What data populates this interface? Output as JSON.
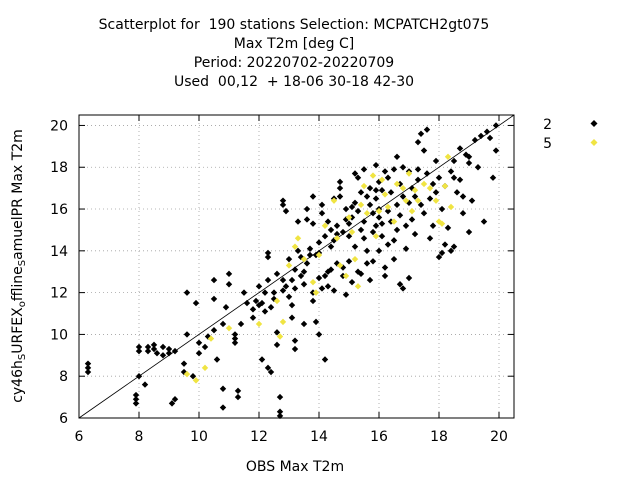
{
  "title_lines": [
    "Scatterplot for  190 stations Selection: MCPATCH2gt075",
    "Max T2m [deg C]",
    "Period: 20220702-20220709",
    "Used  00,12  + 18-06 30-18 42-30"
  ],
  "colors": {
    "series_2": "#000000",
    "series_5": "#f0e442",
    "grid": "#a0a0a0"
  },
  "chart_data": {
    "type": "scatter",
    "xlabel": "OBS Max T2m",
    "ylabel_parts": [
      "cy46h",
      "S",
      "URFEX",
      "o",
      "ffline",
      "S",
      "amuelPR Max T2m"
    ],
    "xlim": [
      6,
      20.5
    ],
    "ylim": [
      6,
      20.5
    ],
    "xticks": [
      6,
      8,
      10,
      12,
      14,
      16,
      18,
      20
    ],
    "yticks": [
      6,
      8,
      10,
      12,
      14,
      16,
      18,
      20
    ],
    "grid": true,
    "legend_position": "outside-top-right",
    "diagonal": true,
    "series": [
      {
        "name": "2",
        "color": "#000000",
        "points": [
          [
            6.3,
            8.6
          ],
          [
            6.3,
            8.2
          ],
          [
            6.3,
            8.4
          ],
          [
            7.9,
            6.9
          ],
          [
            7.9,
            6.7
          ],
          [
            7.9,
            7.1
          ],
          [
            8.0,
            9.4
          ],
          [
            8.0,
            9.2
          ],
          [
            8.0,
            8.0
          ],
          [
            8.2,
            7.6
          ],
          [
            8.3,
            9.4
          ],
          [
            8.3,
            9.2
          ],
          [
            8.5,
            9.3
          ],
          [
            8.5,
            9.5
          ],
          [
            8.6,
            9.1
          ],
          [
            8.8,
            9.0
          ],
          [
            8.8,
            9.4
          ],
          [
            9.0,
            9.3
          ],
          [
            9.0,
            9.1
          ],
          [
            9.1,
            6.7
          ],
          [
            9.2,
            6.9
          ],
          [
            9.2,
            9.2
          ],
          [
            9.5,
            8.2
          ],
          [
            9.5,
            8.6
          ],
          [
            9.6,
            12.0
          ],
          [
            9.6,
            10.0
          ],
          [
            9.8,
            8.0
          ],
          [
            9.9,
            11.5
          ],
          [
            10.0,
            9.1
          ],
          [
            10.0,
            9.6
          ],
          [
            10.2,
            9.4
          ],
          [
            10.3,
            9.9
          ],
          [
            10.5,
            10.2
          ],
          [
            10.5,
            11.7
          ],
          [
            10.5,
            12.6
          ],
          [
            10.6,
            8.8
          ],
          [
            10.8,
            10.5
          ],
          [
            10.8,
            7.4
          ],
          [
            10.8,
            6.5
          ],
          [
            10.9,
            11.3
          ],
          [
            11.0,
            12.4
          ],
          [
            11.0,
            12.9
          ],
          [
            11.2,
            9.6
          ],
          [
            11.2,
            10.0
          ],
          [
            11.2,
            9.8
          ],
          [
            11.3,
            7.3
          ],
          [
            11.3,
            7.0
          ],
          [
            11.4,
            10.5
          ],
          [
            11.5,
            12.0
          ],
          [
            11.6,
            11.5
          ],
          [
            11.8,
            11.2
          ],
          [
            11.8,
            10.8
          ],
          [
            11.9,
            11.6
          ],
          [
            12.0,
            11.4
          ],
          [
            12.0,
            12.3
          ],
          [
            12.1,
            8.8
          ],
          [
            12.1,
            11.5
          ],
          [
            12.2,
            11.1
          ],
          [
            12.2,
            12.0
          ],
          [
            12.3,
            12.6
          ],
          [
            12.3,
            13.7
          ],
          [
            12.3,
            13.9
          ],
          [
            12.3,
            8.4
          ],
          [
            12.4,
            8.2
          ],
          [
            12.4,
            11.3
          ],
          [
            12.5,
            12.0
          ],
          [
            12.5,
            11.7
          ],
          [
            12.6,
            10.1
          ],
          [
            12.6,
            9.5
          ],
          [
            12.6,
            12.9
          ],
          [
            12.7,
            6.1
          ],
          [
            12.7,
            6.3
          ],
          [
            12.7,
            7.0
          ],
          [
            12.8,
            12.1
          ],
          [
            12.8,
            12.6
          ],
          [
            12.8,
            16.4
          ],
          [
            12.8,
            16.2
          ],
          [
            12.9,
            15.9
          ],
          [
            12.9,
            12.3
          ],
          [
            13.0,
            13.6
          ],
          [
            13.0,
            11.8
          ],
          [
            13.1,
            10.8
          ],
          [
            13.1,
            11.4
          ],
          [
            13.1,
            12.6
          ],
          [
            13.2,
            12.2
          ],
          [
            13.2,
            13.1
          ],
          [
            13.2,
            9.3
          ],
          [
            13.2,
            9.7
          ],
          [
            13.3,
            15.4
          ],
          [
            13.3,
            14.0
          ],
          [
            13.4,
            13.7
          ],
          [
            13.4,
            12.8
          ],
          [
            13.5,
            13.0
          ],
          [
            13.5,
            12.4
          ],
          [
            13.5,
            10.5
          ],
          [
            13.6,
            13.4
          ],
          [
            13.6,
            16.0
          ],
          [
            13.6,
            15.5
          ],
          [
            13.7,
            14.1
          ],
          [
            13.7,
            13.8
          ],
          [
            13.8,
            11.6
          ],
          [
            13.8,
            12.0
          ],
          [
            13.8,
            15.3
          ],
          [
            13.9,
            10.6
          ],
          [
            13.9,
            13.8
          ],
          [
            14.0,
            14.4
          ],
          [
            14.0,
            13.9
          ],
          [
            14.0,
            12.7
          ],
          [
            14.0,
            10.0
          ],
          [
            14.1,
            12.2
          ],
          [
            14.1,
            16.2
          ],
          [
            14.1,
            15.8
          ],
          [
            14.2,
            14.7
          ],
          [
            14.2,
            12.8
          ],
          [
            14.2,
            8.8
          ],
          [
            14.3,
            12.3
          ],
          [
            14.3,
            13.0
          ],
          [
            14.4,
            15.0
          ],
          [
            14.4,
            13.1
          ],
          [
            14.4,
            14.2
          ],
          [
            14.5,
            16.5
          ],
          [
            14.5,
            14.5
          ],
          [
            14.5,
            12.1
          ],
          [
            14.6,
            14.8
          ],
          [
            14.6,
            15.2
          ],
          [
            14.6,
            13.4
          ],
          [
            14.7,
            17.3
          ],
          [
            14.7,
            17.0
          ],
          [
            14.7,
            16.6
          ],
          [
            14.8,
            14.9
          ],
          [
            14.8,
            13.2
          ],
          [
            14.8,
            12.8
          ],
          [
            14.9,
            15.5
          ],
          [
            14.9,
            16.0
          ],
          [
            14.9,
            11.9
          ],
          [
            15.0,
            14.7
          ],
          [
            15.0,
            15.3
          ],
          [
            15.0,
            13.5
          ],
          [
            15.1,
            12.5
          ],
          [
            15.1,
            15.6
          ],
          [
            15.1,
            16.1
          ],
          [
            15.2,
            14.2
          ],
          [
            15.2,
            16.3
          ],
          [
            15.2,
            17.7
          ],
          [
            15.3,
            17.5
          ],
          [
            15.3,
            15.9
          ],
          [
            15.3,
            13.0
          ],
          [
            15.4,
            15.0
          ],
          [
            15.4,
            12.9
          ],
          [
            15.4,
            16.8
          ],
          [
            15.5,
            14.6
          ],
          [
            15.5,
            17.9
          ],
          [
            15.5,
            15.4
          ],
          [
            15.6,
            16.6
          ],
          [
            15.6,
            13.4
          ],
          [
            15.6,
            14.0
          ],
          [
            15.7,
            16.2
          ],
          [
            15.7,
            17.0
          ],
          [
            15.7,
            12.6
          ],
          [
            15.8,
            15.8
          ],
          [
            15.8,
            14.9
          ],
          [
            15.8,
            13.5
          ],
          [
            15.9,
            16.5
          ],
          [
            15.9,
            15.2
          ],
          [
            15.9,
            18.1
          ],
          [
            16.0,
            17.3
          ],
          [
            16.0,
            14.0
          ],
          [
            16.0,
            16.0
          ],
          [
            16.0,
            15.6
          ],
          [
            16.1,
            15.3
          ],
          [
            16.1,
            14.7
          ],
          [
            16.1,
            16.9
          ],
          [
            16.2,
            12.8
          ],
          [
            16.2,
            13.2
          ],
          [
            16.3,
            17.5
          ],
          [
            16.3,
            15.9
          ],
          [
            16.3,
            14.3
          ],
          [
            16.4,
            16.8
          ],
          [
            16.4,
            15.4
          ],
          [
            16.5,
            17.9
          ],
          [
            16.5,
            14.5
          ],
          [
            16.5,
            13.6
          ],
          [
            16.6,
            16.2
          ],
          [
            16.6,
            15.0
          ],
          [
            16.6,
            18.5
          ],
          [
            16.7,
            17.2
          ],
          [
            16.7,
            12.4
          ],
          [
            16.7,
            15.7
          ],
          [
            16.8,
            16.6
          ],
          [
            16.8,
            12.2
          ],
          [
            16.8,
            18.0
          ],
          [
            16.9,
            15.2
          ],
          [
            16.9,
            14.1
          ],
          [
            17.0,
            17.8
          ],
          [
            17.0,
            16.3
          ],
          [
            17.0,
            12.7
          ],
          [
            17.1,
            17.0
          ],
          [
            17.1,
            15.5
          ],
          [
            17.2,
            14.8
          ],
          [
            17.2,
            16.6
          ],
          [
            17.3,
            19.2
          ],
          [
            17.3,
            17.4
          ],
          [
            17.4,
            16.2
          ],
          [
            17.4,
            19.6
          ],
          [
            17.5,
            18.8
          ],
          [
            17.5,
            15.8
          ],
          [
            17.6,
            17.7
          ],
          [
            17.6,
            19.8
          ],
          [
            17.7,
            16.5
          ],
          [
            17.7,
            14.6
          ],
          [
            17.8,
            17.2
          ],
          [
            17.8,
            15.2
          ],
          [
            17.9,
            16.8
          ],
          [
            17.9,
            18.3
          ],
          [
            18.0,
            17.5
          ],
          [
            18.0,
            13.7
          ],
          [
            18.1,
            16.0
          ],
          [
            18.1,
            13.9
          ],
          [
            18.2,
            17.1
          ],
          [
            18.2,
            14.3
          ],
          [
            18.3,
            15.1
          ],
          [
            18.4,
            17.8
          ],
          [
            18.4,
            14.0
          ],
          [
            18.5,
            18.3
          ],
          [
            18.5,
            17.5
          ],
          [
            18.6,
            16.8
          ],
          [
            18.7,
            17.4
          ],
          [
            18.8,
            15.8
          ],
          [
            18.8,
            16.6
          ],
          [
            18.9,
            18.6
          ],
          [
            19.0,
            18.2
          ],
          [
            19.0,
            18.5
          ],
          [
            19.1,
            16.4
          ],
          [
            19.2,
            19.3
          ],
          [
            19.3,
            18.0
          ],
          [
            19.4,
            19.5
          ],
          [
            19.5,
            15.4
          ],
          [
            19.6,
            19.7
          ],
          [
            19.7,
            19.4
          ],
          [
            19.8,
            17.5
          ],
          [
            19.9,
            18.8
          ],
          [
            19.9,
            20.0
          ],
          [
            18.5,
            14.2
          ],
          [
            18.7,
            18.9
          ],
          [
            19.0,
            14.9
          ],
          [
            17.3,
            17.9
          ],
          [
            16.2,
            17.8
          ],
          [
            15.9,
            16.9
          ],
          [
            14.3,
            15.4
          ],
          [
            13.8,
            16.6
          ]
        ]
      },
      {
        "name": "5",
        "color": "#f0e442",
        "points": [
          [
            9.6,
            8.1
          ],
          [
            9.9,
            7.8
          ],
          [
            10.2,
            8.4
          ],
          [
            10.4,
            9.8
          ],
          [
            11.0,
            10.3
          ],
          [
            12.0,
            10.5
          ],
          [
            12.6,
            11.6
          ],
          [
            12.7,
            9.9
          ],
          [
            12.8,
            10.6
          ],
          [
            13.0,
            13.3
          ],
          [
            13.2,
            14.2
          ],
          [
            13.3,
            14.6
          ],
          [
            13.5,
            13.6
          ],
          [
            13.8,
            12.5
          ],
          [
            13.9,
            12.0
          ],
          [
            14.0,
            13.8
          ],
          [
            14.2,
            15.2
          ],
          [
            14.5,
            16.4
          ],
          [
            14.6,
            14.6
          ],
          [
            14.7,
            13.3
          ],
          [
            14.9,
            12.8
          ],
          [
            15.0,
            15.6
          ],
          [
            15.1,
            14.9
          ],
          [
            15.2,
            13.6
          ],
          [
            15.3,
            12.3
          ],
          [
            15.4,
            16.2
          ],
          [
            15.5,
            17.1
          ],
          [
            15.6,
            15.8
          ],
          [
            15.8,
            17.6
          ],
          [
            15.9,
            14.7
          ],
          [
            16.0,
            15.9
          ],
          [
            16.1,
            17.4
          ],
          [
            16.2,
            16.7
          ],
          [
            16.3,
            16.1
          ],
          [
            16.5,
            15.4
          ],
          [
            16.6,
            17.2
          ],
          [
            16.8,
            17.0
          ],
          [
            16.9,
            16.4
          ],
          [
            17.0,
            17.7
          ],
          [
            17.2,
            16.9
          ],
          [
            17.3,
            16.4
          ],
          [
            17.5,
            17.2
          ],
          [
            17.7,
            17.0
          ],
          [
            17.9,
            16.4
          ],
          [
            18.0,
            15.4
          ],
          [
            18.1,
            15.3
          ],
          [
            18.2,
            17.1
          ],
          [
            18.3,
            18.5
          ],
          [
            18.4,
            16.1
          ],
          [
            17.1,
            15.9
          ]
        ]
      }
    ]
  }
}
